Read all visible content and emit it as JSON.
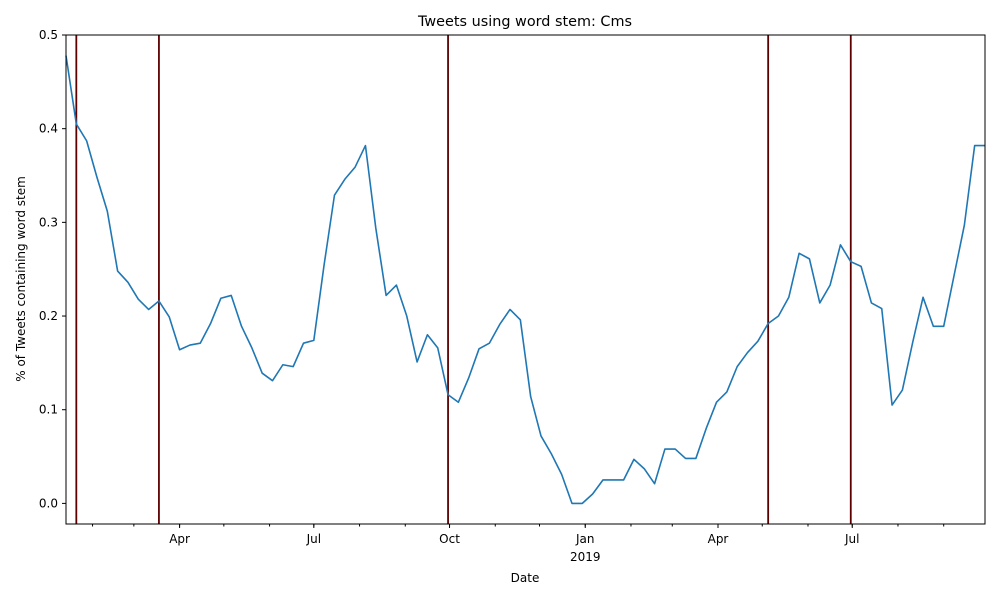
{
  "chart_data": {
    "type": "line",
    "title": "Tweets using word stem: Cms",
    "xlabel": "Date",
    "ylabel": "% of Tweets containing word stem",
    "ylim": [
      -0.022,
      0.5
    ],
    "xlim": [
      "2018-01-14",
      "2019-09-29"
    ],
    "yticks": [
      {
        "value": 0.0,
        "label": "0.0"
      },
      {
        "value": 0.1,
        "label": "0.1"
      },
      {
        "value": 0.2,
        "label": "0.2"
      },
      {
        "value": 0.3,
        "label": "0.3"
      },
      {
        "value": 0.4,
        "label": "0.4"
      },
      {
        "value": 0.5,
        "label": "0.5"
      }
    ],
    "xticks": [
      {
        "date": "2018-04-01",
        "label": "Apr"
      },
      {
        "date": "2018-07-01",
        "label": "Jul"
      },
      {
        "date": "2018-10-01",
        "label": "Oct"
      },
      {
        "date": "2019-01-01",
        "label": "Jan",
        "sublabel": "2019"
      },
      {
        "date": "2019-04-01",
        "label": "Apr"
      },
      {
        "date": "2019-07-01",
        "label": "Jul"
      }
    ],
    "vlines": [
      "2018-01-21",
      "2018-03-18",
      "2018-09-30",
      "2019-05-05",
      "2019-06-30"
    ],
    "vline_color": "#5c0000",
    "line_color": "#1f77b4",
    "grid": false,
    "series": [
      {
        "x": [
          "2018-01-14",
          "2018-01-21",
          "2018-01-28",
          "2018-02-04",
          "2018-02-11",
          "2018-02-18",
          "2018-02-25",
          "2018-03-04",
          "2018-03-11",
          "2018-03-18",
          "2018-03-25",
          "2018-04-01",
          "2018-04-08",
          "2018-04-15",
          "2018-04-22",
          "2018-04-29",
          "2018-05-06",
          "2018-05-13",
          "2018-05-20",
          "2018-05-27",
          "2018-06-03",
          "2018-06-10",
          "2018-06-17",
          "2018-06-24",
          "2018-07-01",
          "2018-07-08",
          "2018-07-15",
          "2018-07-22",
          "2018-07-29",
          "2018-08-05",
          "2018-08-12",
          "2018-08-19",
          "2018-08-26",
          "2018-09-02",
          "2018-09-09",
          "2018-09-16",
          "2018-09-23",
          "2018-09-30",
          "2018-10-07",
          "2018-10-14",
          "2018-10-21",
          "2018-10-28",
          "2018-11-04",
          "2018-11-11",
          "2018-11-18",
          "2018-11-25",
          "2018-12-02",
          "2018-12-09",
          "2018-12-16",
          "2018-12-23",
          "2018-12-30",
          "2019-01-06",
          "2019-01-13",
          "2019-01-20",
          "2019-01-27",
          "2019-02-03",
          "2019-02-10",
          "2019-02-17",
          "2019-02-24",
          "2019-03-03",
          "2019-03-10",
          "2019-03-17",
          "2019-03-24",
          "2019-03-31",
          "2019-04-07",
          "2019-04-14",
          "2019-04-21",
          "2019-04-28",
          "2019-05-05",
          "2019-05-12",
          "2019-05-19",
          "2019-05-26",
          "2019-06-02",
          "2019-06-09",
          "2019-06-16",
          "2019-06-23",
          "2019-06-30",
          "2019-07-07",
          "2019-07-14",
          "2019-07-21",
          "2019-07-28",
          "2019-08-04",
          "2019-08-11",
          "2019-08-18",
          "2019-08-25",
          "2019-09-01",
          "2019-09-08",
          "2019-09-15",
          "2019-09-22",
          "2019-09-29"
        ],
        "y": [
          0.478,
          0.405,
          0.387,
          0.348,
          0.312,
          0.248,
          0.236,
          0.218,
          0.207,
          0.216,
          0.199,
          0.164,
          0.169,
          0.171,
          0.192,
          0.219,
          0.222,
          0.189,
          0.166,
          0.139,
          0.131,
          0.148,
          0.146,
          0.171,
          0.174,
          0.255,
          0.329,
          0.346,
          0.359,
          0.382,
          0.294,
          0.222,
          0.233,
          0.2,
          0.151,
          0.18,
          0.166,
          0.116,
          0.108,
          0.134,
          0.165,
          0.171,
          0.191,
          0.207,
          0.196,
          0.114,
          0.072,
          0.053,
          0.031,
          0.0,
          0.0,
          0.01,
          0.025,
          0.025,
          0.025,
          0.047,
          0.037,
          0.021,
          0.058,
          0.058,
          0.048,
          0.048,
          0.08,
          0.108,
          0.119,
          0.146,
          0.161,
          0.173,
          0.192,
          0.2,
          0.22,
          0.267,
          0.261,
          0.214,
          0.233,
          0.276,
          0.258,
          0.253,
          0.214,
          0.208,
          0.105,
          0.121,
          0.172,
          0.22,
          0.189,
          0.189,
          0.243,
          0.297,
          0.382,
          0.382
        ]
      }
    ]
  }
}
